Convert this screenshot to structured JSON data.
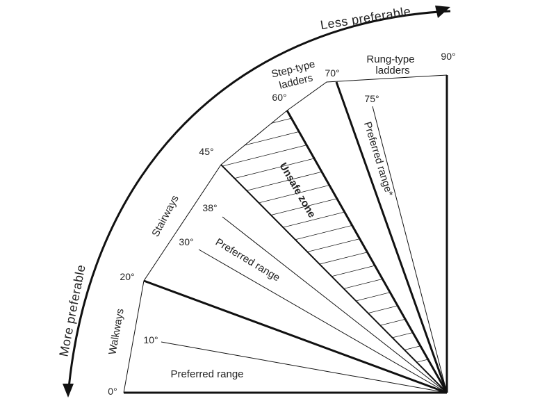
{
  "arrows": {
    "less_preferable": "Less preferable",
    "more_preferable": "More preferable"
  },
  "angles": {
    "a0": "0°",
    "a10": "10°",
    "a20": "20°",
    "a30": "30°",
    "a38": "38°",
    "a45": "45°",
    "a60": "60°",
    "a70": "70°",
    "a75": "75°",
    "a90": "90°"
  },
  "categories": {
    "walkways": "Walkways",
    "stairways": "Stairways",
    "step_ladders_line1": "Step-type",
    "step_ladders_line2": "ladders",
    "rung_ladders_line1": "Rung-type",
    "rung_ladders_line2": "ladders"
  },
  "ranges": {
    "walkway_preferred": "Preferred range",
    "stairway_preferred": "Preferred range",
    "ladder_preferred": "Preferred range*",
    "unsafe_zone": "Unsafe zone"
  },
  "colors": {
    "line": "#111111",
    "text": "#222222",
    "background": "#ffffff"
  }
}
